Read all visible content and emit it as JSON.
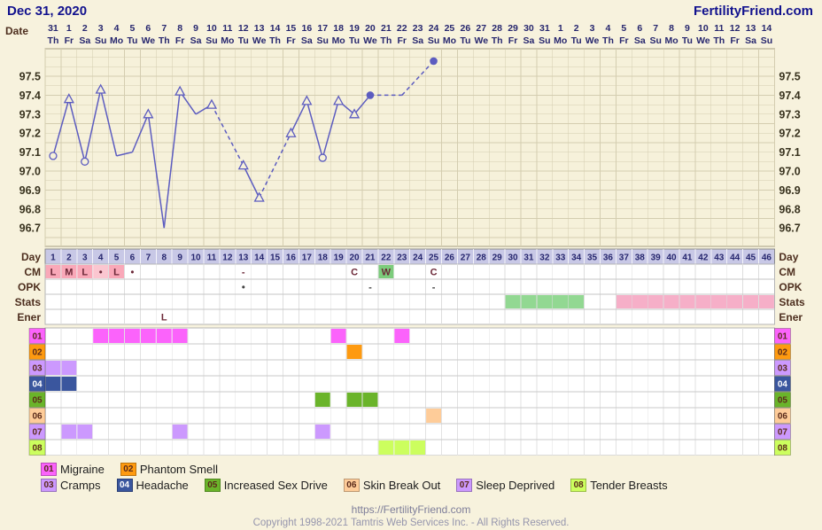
{
  "header": {
    "date": "Dec 31, 2020",
    "site": "FertilityFriend.com"
  },
  "axis": {
    "row_labels": {
      "date": "Date",
      "day": "Day",
      "cm": "CM",
      "opk": "OPK",
      "stats": "Stats",
      "ener": "Ener"
    },
    "y_ticks": [
      "97.5",
      "97.4",
      "97.3",
      "97.2",
      "97.1",
      "97.0",
      "96.9",
      "96.8",
      "96.7"
    ]
  },
  "calendar": {
    "dates": [
      "31",
      "1",
      "2",
      "3",
      "4",
      "5",
      "6",
      "7",
      "8",
      "9",
      "10",
      "11",
      "12",
      "13",
      "14",
      "15",
      "16",
      "17",
      "18",
      "19",
      "20",
      "21",
      "22",
      "23",
      "24",
      "25",
      "26",
      "27",
      "28",
      "29",
      "30",
      "31",
      "1",
      "2",
      "3",
      "4",
      "5",
      "6",
      "7",
      "8",
      "9",
      "10",
      "11",
      "12",
      "13",
      "14"
    ],
    "dows": [
      "Th",
      "Fr",
      "Sa",
      "Su",
      "Mo",
      "Tu",
      "We",
      "Th",
      "Fr",
      "Sa",
      "Su",
      "Mo",
      "Tu",
      "We",
      "Th",
      "Fr",
      "Sa",
      "Su",
      "Mo",
      "Tu",
      "We",
      "Th",
      "Fr",
      "Sa",
      "Su",
      "Mo",
      "Tu",
      "We",
      "Th",
      "Fr",
      "Sa",
      "Su",
      "Mo",
      "Tu",
      "We",
      "Th",
      "Fr",
      "Sa",
      "Su",
      "Mo",
      "Tu",
      "We",
      "Th",
      "Fr",
      "Sa",
      "Su"
    ]
  },
  "day_numbers": [
    1,
    2,
    3,
    4,
    5,
    6,
    7,
    8,
    9,
    10,
    11,
    12,
    13,
    14,
    15,
    16,
    17,
    18,
    19,
    20,
    21,
    22,
    23,
    24,
    25,
    26,
    27,
    28,
    29,
    30,
    31,
    32,
    33,
    34,
    35,
    36,
    37,
    38,
    39,
    40,
    41,
    42,
    43,
    44,
    45,
    46
  ],
  "chart_data": {
    "type": "line",
    "line_color": "#5c5cc0",
    "y_ticks": [
      97.5,
      97.4,
      97.3,
      97.2,
      97.1,
      97.0,
      96.9,
      96.8,
      96.7
    ],
    "ylim": [
      96.6,
      97.65
    ],
    "xlabel": "Day",
    "points": [
      {
        "day": 1,
        "temp": 97.08,
        "marker": "circle-open"
      },
      {
        "day": 2,
        "temp": 97.38,
        "marker": "triangle-open"
      },
      {
        "day": 3,
        "temp": 97.05,
        "marker": "circle-open"
      },
      {
        "day": 4,
        "temp": 97.43,
        "marker": "triangle-open"
      },
      {
        "day": 5,
        "temp": 97.08,
        "marker": "none"
      },
      {
        "day": 6,
        "temp": 97.1,
        "marker": "none"
      },
      {
        "day": 7,
        "temp": 97.3,
        "marker": "triangle-open"
      },
      {
        "day": 8,
        "temp": 96.7,
        "marker": "none"
      },
      {
        "day": 9,
        "temp": 97.42,
        "marker": "triangle-open"
      },
      {
        "day": 10,
        "temp": 97.3,
        "marker": "none"
      },
      {
        "day": 11,
        "temp": 97.35,
        "marker": "triangle-open"
      },
      {
        "day": 13,
        "temp": 97.03,
        "marker": "triangle-open"
      },
      {
        "day": 14,
        "temp": 96.86,
        "marker": "triangle-open"
      },
      {
        "day": 16,
        "temp": 97.2,
        "marker": "triangle-open"
      },
      {
        "day": 17,
        "temp": 97.37,
        "marker": "triangle-open"
      },
      {
        "day": 18,
        "temp": 97.07,
        "marker": "circle-open"
      },
      {
        "day": 19,
        "temp": 97.37,
        "marker": "triangle-open"
      },
      {
        "day": 20,
        "temp": 97.3,
        "marker": "triangle-open"
      },
      {
        "day": 21,
        "temp": 97.4,
        "marker": "circle-filled"
      },
      {
        "day": 23,
        "temp": 97.4,
        "marker": "none"
      },
      {
        "day": 25,
        "temp": 97.58,
        "marker": "circle-filled"
      }
    ],
    "dashed_segments": [
      [
        11,
        13
      ],
      [
        14,
        16
      ],
      [
        21,
        23
      ],
      [
        23,
        25
      ]
    ]
  },
  "rows": {
    "cm": {
      "cells": [
        {
          "day": 1,
          "text": "L",
          "bg": "#f9a8b8"
        },
        {
          "day": 2,
          "text": "M",
          "bg": "#f9a8b8"
        },
        {
          "day": 3,
          "text": "L",
          "bg": "#f9a8b8"
        },
        {
          "day": 4,
          "text": "•",
          "bg": "#fbc6d0"
        },
        {
          "day": 5,
          "text": "L",
          "bg": "#f9a8b8"
        },
        {
          "day": 6,
          "text": "•",
          "bg": ""
        },
        {
          "day": 13,
          "text": "-",
          "bg": ""
        },
        {
          "day": 20,
          "text": "C",
          "bg": ""
        },
        {
          "day": 22,
          "text": "W",
          "bg": "#7ccc7c",
          "fg": "#1f4d1f"
        },
        {
          "day": 25,
          "text": "C",
          "bg": ""
        }
      ]
    },
    "opk": {
      "cells": [
        {
          "day": 13,
          "text": "•"
        },
        {
          "day": 21,
          "text": "-"
        },
        {
          "day": 25,
          "text": "-"
        }
      ]
    },
    "stats": {
      "ranges": [
        {
          "from": 30,
          "to": 34,
          "color": "#92d892"
        },
        {
          "from": 37,
          "to": 46,
          "color": "#f6afc8"
        }
      ]
    },
    "ener": {
      "cells": [
        {
          "day": 8,
          "text": "L"
        }
      ]
    }
  },
  "symptoms": [
    {
      "id": "01",
      "label": "Migraine",
      "color": "#fb63fb",
      "days": [
        4,
        5,
        6,
        7,
        8,
        9,
        19,
        23
      ]
    },
    {
      "id": "02",
      "label": "Phantom Smell",
      "color": "#fe9a10",
      "days": [
        20
      ]
    },
    {
      "id": "03",
      "label": "Cramps",
      "color": "#cc99fe",
      "days": [
        1,
        2
      ]
    },
    {
      "id": "04",
      "label": "Headache",
      "color": "#3a569e",
      "number_color": "#ffffff",
      "days": [
        1,
        2
      ]
    },
    {
      "id": "05",
      "label": "Increased Sex Drive",
      "color": "#6ab42a",
      "days": [
        18,
        20,
        21
      ]
    },
    {
      "id": "06",
      "label": "Skin Break Out",
      "color": "#fecc99",
      "days": [
        25
      ]
    },
    {
      "id": "07",
      "label": "Sleep Deprived",
      "color": "#cc99fe",
      "days": [
        2,
        3,
        9,
        18
      ]
    },
    {
      "id": "08",
      "label": "Tender Breasts",
      "color": "#ccfe5e",
      "days": [
        22,
        23,
        24
      ]
    }
  ],
  "footer": {
    "url": "https://FertilityFriend.com",
    "copyright": "Copyright 1998-2021 Tamtris Web Services Inc. - All Rights Reserved."
  }
}
